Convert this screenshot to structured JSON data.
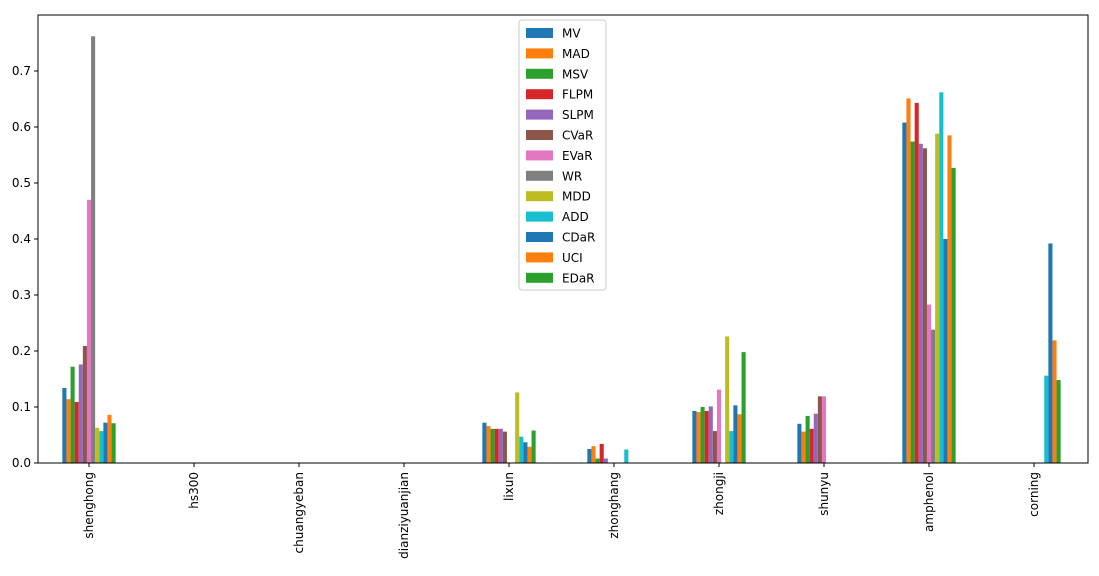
{
  "chart_data": {
    "type": "bar",
    "title": "",
    "xlabel": "",
    "ylabel": "",
    "ylim": [
      0,
      0.8
    ],
    "yticks": [
      0.0,
      0.1,
      0.2,
      0.3,
      0.4,
      0.5,
      0.6,
      0.7
    ],
    "ytick_labels": [
      "0.0",
      "0.1",
      "0.2",
      "0.3",
      "0.4",
      "0.5",
      "0.6",
      "0.7"
    ],
    "legend_position": "upper-center",
    "categories": [
      "shenghong",
      "hs300",
      "chuangyeban",
      "dianziyuanjian",
      "lixun",
      "zhonghang",
      "zhongji",
      "shunyu",
      "amphenol",
      "corning"
    ],
    "series": [
      {
        "name": "MV",
        "color": "#1f77b4",
        "values": [
          0.134,
          0,
          0,
          0,
          0.072,
          0.025,
          0.093,
          0.07,
          0.608,
          0
        ]
      },
      {
        "name": "MAD",
        "color": "#ff7f0e",
        "values": [
          0.114,
          0,
          0,
          0,
          0.066,
          0.03,
          0.091,
          0.056,
          0.651,
          0
        ]
      },
      {
        "name": "MSV",
        "color": "#2ca02c",
        "values": [
          0.172,
          0,
          0,
          0,
          0.061,
          0.008,
          0.1,
          0.084,
          0.574,
          0
        ]
      },
      {
        "name": "FLPM",
        "color": "#d62728",
        "values": [
          0.109,
          0,
          0,
          0,
          0.061,
          0.034,
          0.093,
          0.061,
          0.643,
          0
        ]
      },
      {
        "name": "SLPM",
        "color": "#9467bd",
        "values": [
          0.176,
          0,
          0,
          0,
          0.061,
          0.008,
          0.101,
          0.088,
          0.57,
          0
        ]
      },
      {
        "name": "CVaR",
        "color": "#8c564b",
        "values": [
          0.209,
          0,
          0,
          0,
          0.056,
          0,
          0.057,
          0.119,
          0.562,
          0
        ]
      },
      {
        "name": "EVaR",
        "color": "#e377c2",
        "values": [
          0.47,
          0,
          0,
          0,
          0,
          0,
          0.131,
          0.119,
          0.283,
          0
        ]
      },
      {
        "name": "WR",
        "color": "#7f7f7f",
        "values": [
          0.762,
          0,
          0,
          0,
          0,
          0,
          0,
          0,
          0.238,
          0
        ]
      },
      {
        "name": "MDD",
        "color": "#bcbd22",
        "values": [
          0.063,
          0,
          0,
          0,
          0.126,
          0,
          0.226,
          0,
          0.588,
          0
        ]
      },
      {
        "name": "ADD",
        "color": "#17becf",
        "values": [
          0.057,
          0,
          0,
          0,
          0.047,
          0.024,
          0.057,
          0,
          0.662,
          0.156
        ]
      },
      {
        "name": "CDaR",
        "color": "#1f77b4",
        "values": [
          0.072,
          0,
          0,
          0,
          0.037,
          0,
          0.103,
          0,
          0.4,
          0.392
        ]
      },
      {
        "name": "UCI",
        "color": "#ff7f0e",
        "values": [
          0.086,
          0,
          0,
          0,
          0.029,
          0,
          0.087,
          0,
          0.585,
          0.219
        ]
      },
      {
        "name": "EDaR",
        "color": "#2ca02c",
        "values": [
          0.071,
          0,
          0,
          0,
          0.058,
          0,
          0.198,
          0,
          0.527,
          0.148
        ]
      }
    ]
  }
}
